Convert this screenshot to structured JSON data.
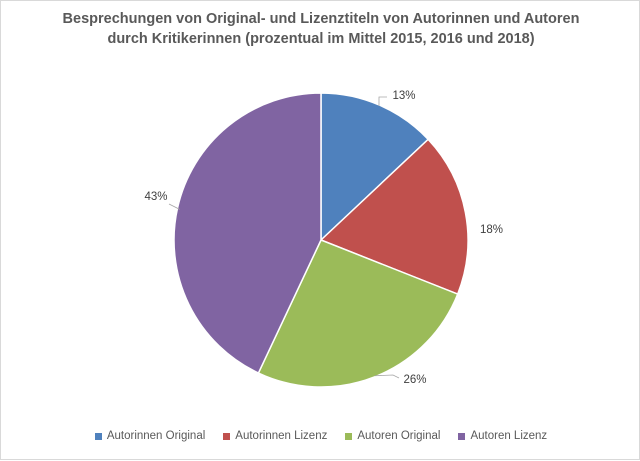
{
  "chart_data": {
    "type": "pie",
    "title_line1": "Besprechungen von Original- und Lizenztiteln von Autorinnen und Autoren",
    "title_line2": "durch Kritikerinnen (prozentual im Mittel 2015, 2016 und 2018)",
    "categories": [
      "Autorinnen Original",
      "Autorinnen Lizenz",
      "Autoren Original",
      "Autoren Lizenz"
    ],
    "values": [
      13,
      18,
      26,
      43
    ],
    "data_labels": [
      "13%",
      "18%",
      "26%",
      "43%"
    ],
    "colors": [
      "#4f81bd",
      "#c0504d",
      "#9bbb59",
      "#8064a2"
    ],
    "legend_position": "bottom"
  }
}
